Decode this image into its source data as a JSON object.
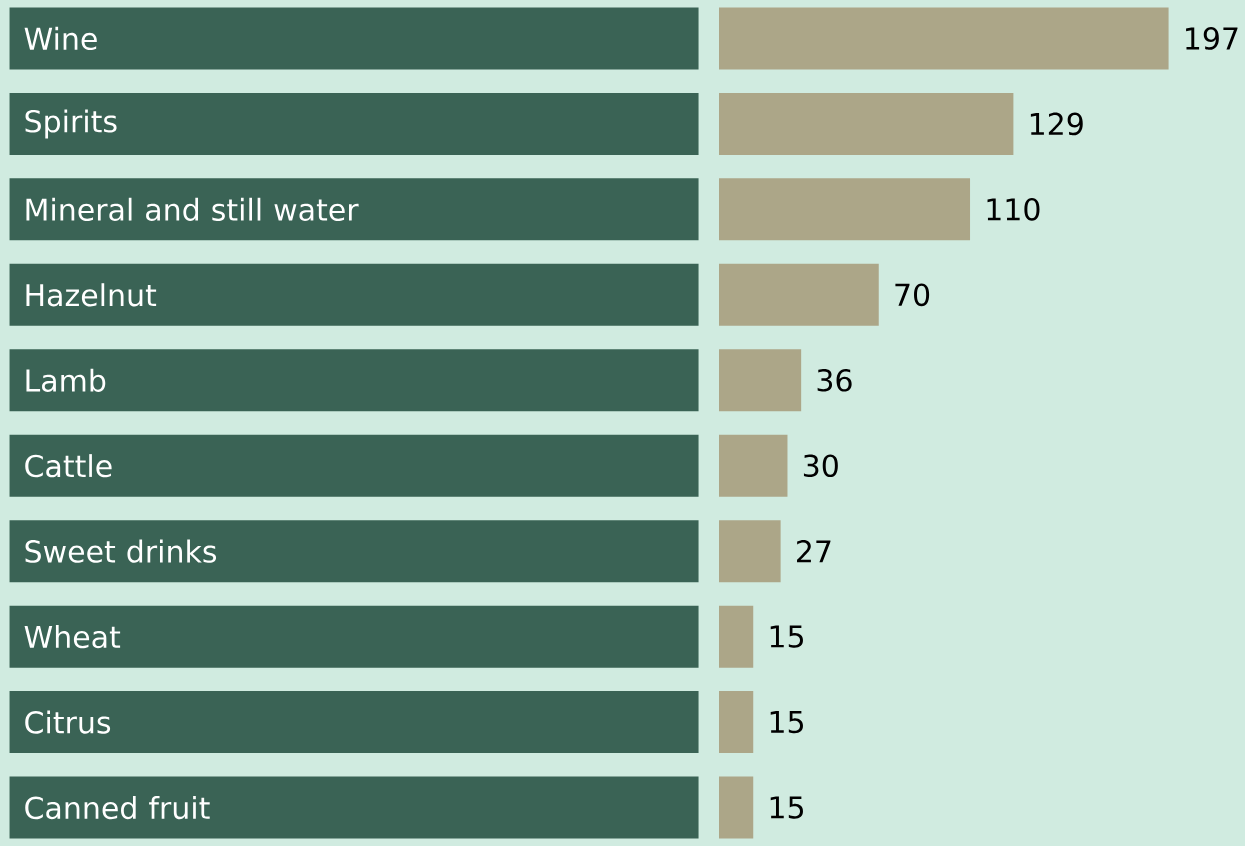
{
  "chart_data": {
    "type": "bar",
    "orientation": "horizontal",
    "categories": [
      "Wine",
      "Spirits",
      "Mineral and still water",
      "Hazelnut",
      "Lamb",
      "Cattle",
      "Sweet drinks",
      "Wheat",
      "Citrus",
      "Canned fruit"
    ],
    "values": [
      197,
      129,
      110,
      70,
      36,
      30,
      27,
      15,
      15,
      15
    ],
    "color": "#aca688",
    "data_labels": true
  }
}
